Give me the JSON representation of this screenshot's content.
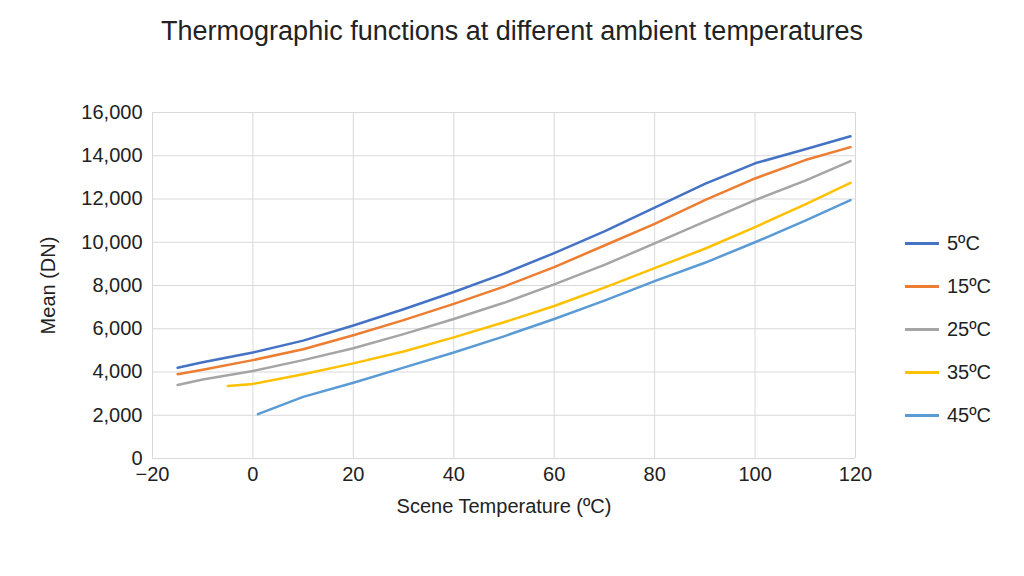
{
  "chart_data": {
    "type": "line",
    "title": "Thermographic functions at different ambient temperatures",
    "x_label": "Scene Temperature (ºC)",
    "y_label": "Mean (DN)",
    "xlim": [
      -20,
      120
    ],
    "xticks": [
      -20,
      0,
      20,
      40,
      60,
      80,
      100,
      120
    ],
    "ylim": [
      0,
      16000
    ],
    "yticks": [
      0,
      2000,
      4000,
      6000,
      8000,
      10000,
      12000,
      14000,
      16000
    ],
    "grid": true,
    "legend": "right",
    "series": [
      {
        "name": "5ºC",
        "color": "#4472c4",
        "x": [
          -15,
          -10,
          0,
          10,
          20,
          30,
          40,
          50,
          60,
          70,
          80,
          90,
          100,
          110,
          119
        ],
        "values": [
          4200,
          4450,
          4900,
          5450,
          6150,
          6900,
          7700,
          8550,
          9500,
          10500,
          11600,
          12700,
          13650,
          14300,
          14900
        ]
      },
      {
        "name": "15ºC",
        "color": "#ed7d31",
        "x": [
          -15,
          -10,
          0,
          10,
          20,
          30,
          40,
          50,
          60,
          70,
          80,
          90,
          100,
          110,
          119
        ],
        "values": [
          3900,
          4100,
          4550,
          5050,
          5700,
          6400,
          7150,
          7950,
          8850,
          9850,
          10850,
          11950,
          12950,
          13800,
          14400
        ]
      },
      {
        "name": "25ºC",
        "color": "#a5a5a5",
        "x": [
          -15,
          -10,
          0,
          10,
          20,
          30,
          40,
          50,
          60,
          70,
          80,
          90,
          100,
          110,
          119
        ],
        "values": [
          3400,
          3650,
          4050,
          4550,
          5100,
          5750,
          6450,
          7200,
          8050,
          8950,
          9950,
          10950,
          11950,
          12850,
          13750
        ]
      },
      {
        "name": "35ºC",
        "color": "#ffc000",
        "x": [
          -5,
          0,
          10,
          20,
          30,
          40,
          50,
          60,
          70,
          80,
          90,
          100,
          110,
          119
        ],
        "values": [
          3350,
          3450,
          3900,
          4400,
          4950,
          5600,
          6300,
          7050,
          7900,
          8800,
          9700,
          10700,
          11750,
          12750
        ]
      },
      {
        "name": "45ºC",
        "color": "#5b9bd5",
        "x": [
          1,
          10,
          20,
          30,
          40,
          50,
          60,
          70,
          80,
          90,
          100,
          110,
          119
        ],
        "values": [
          2050,
          2850,
          3500,
          4200,
          4900,
          5650,
          6450,
          7300,
          8200,
          9050,
          10000,
          11000,
          11950
        ]
      }
    ]
  }
}
